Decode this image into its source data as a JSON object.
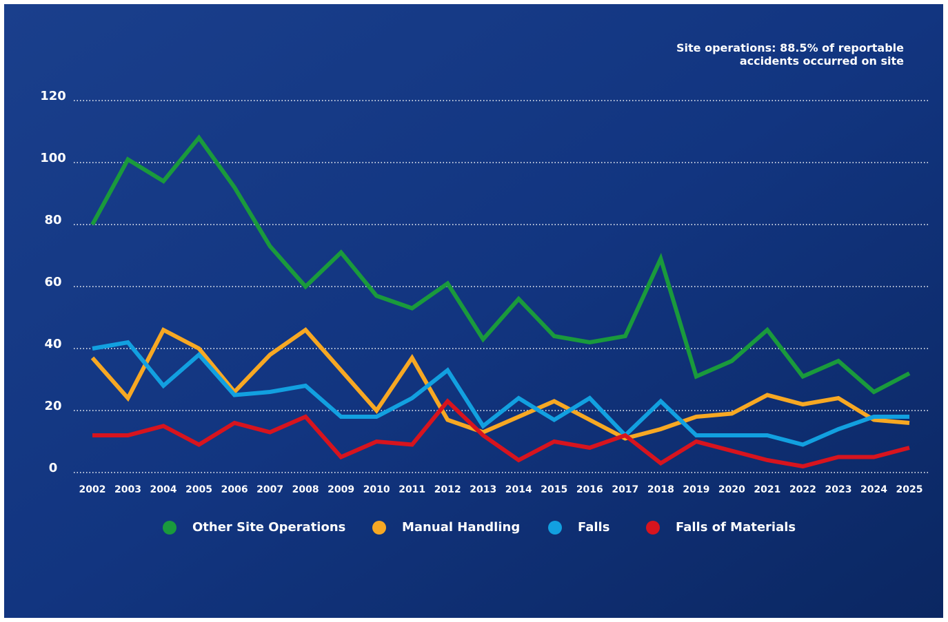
{
  "chart_data": {
    "type": "line",
    "annotation": "Site operations: 88.5% of reportable accidents occurred on site",
    "categories": [
      "2002",
      "2003",
      "2004",
      "2005",
      "2006",
      "2007",
      "2008",
      "2009",
      "2010",
      "2011",
      "2012",
      "2013",
      "2014",
      "2015",
      "2016",
      "2017",
      "2018",
      "2019",
      "2020",
      "2021",
      "2022",
      "2023",
      "2024",
      "2025"
    ],
    "series": [
      {
        "name": "Other Site Operations",
        "color": "#1a9a3c",
        "values": [
          80,
          101,
          94,
          108,
          92,
          73,
          60,
          71,
          57,
          53,
          61,
          43,
          56,
          44,
          42,
          44,
          69,
          31,
          36,
          46,
          31,
          36,
          26,
          32
        ]
      },
      {
        "name": "Manual Handling",
        "color": "#f7a823",
        "values": [
          37,
          24,
          46,
          40,
          26,
          38,
          46,
          33,
          20,
          37,
          17,
          13,
          18,
          23,
          17,
          11,
          14,
          18,
          19,
          25,
          22,
          24,
          17,
          16
        ]
      },
      {
        "name": "Falls",
        "color": "#12a0e0",
        "values": [
          40,
          42,
          28,
          38,
          25,
          26,
          28,
          18,
          18,
          24,
          33,
          15,
          24,
          17,
          24,
          12,
          23,
          12,
          12,
          12,
          9,
          14,
          18,
          18
        ]
      },
      {
        "name": "Falls of Materials",
        "color": "#d7141e",
        "values": [
          12,
          12,
          15,
          9,
          16,
          13,
          18,
          5,
          10,
          9,
          23,
          12,
          4,
          10,
          8,
          12,
          3,
          10,
          7,
          4,
          2,
          5,
          5,
          8
        ]
      }
    ],
    "ylim": [
      0,
      120
    ],
    "yticks": [
      0,
      20,
      40,
      60,
      80,
      100,
      120
    ],
    "grid": true
  }
}
